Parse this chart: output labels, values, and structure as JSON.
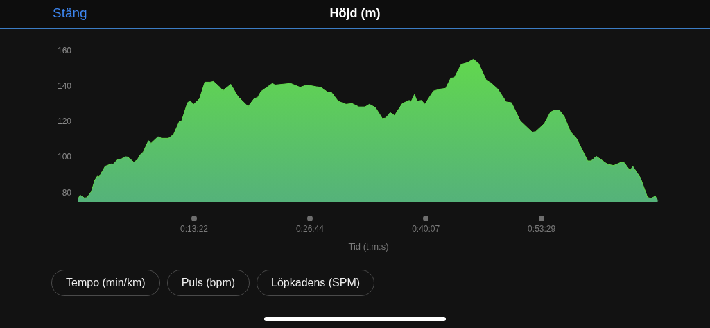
{
  "chart_data": {
    "type": "area",
    "title": "Höjd (m)",
    "xlabel": "Tid (t:m:s)",
    "annotations": [
      "Stäng",
      "Tempo (min/km)",
      "Puls (bpm)",
      "Löpkadens (SPM)"
    ],
    "color": "#62d94c",
    "grid": false,
    "legend": false,
    "marker": "none",
    "xlim": [
      0,
      67
    ],
    "xticks": [
      {
        "value": 13.367,
        "label": "0:13:22"
      },
      {
        "value": 26.733,
        "label": "0:26:44"
      },
      {
        "value": 40.117,
        "label": "0:40:07"
      },
      {
        "value": 53.483,
        "label": "0:53:29"
      }
    ],
    "ylim": [
      75,
      160
    ],
    "yticks": [
      80,
      100,
      120,
      140,
      160
    ],
    "x": [
      0,
      0.2,
      0.7,
      1.0,
      1.5,
      1.9,
      2.2,
      2.4,
      3.1,
      3.8,
      4.0,
      4.5,
      5.0,
      5.4,
      5.7,
      6.4,
      6.8,
      7.2,
      7.5,
      8.1,
      8.4,
      9.2,
      9.6,
      10.4,
      11.0,
      11.7,
      11.9,
      12.6,
      12.9,
      13.3,
      14.0,
      14.6,
      15.2,
      15.6,
      16.2,
      16.7,
      17.6,
      18.4,
      19.6,
      20.3,
      20.7,
      21.1,
      22.4,
      22.7,
      24.5,
      25.6,
      26.4,
      27.5,
      28.0,
      28.8,
      29.2,
      30.0,
      30.9,
      31.6,
      32.4,
      33.1,
      33.6,
      34.3,
      35.1,
      35.5,
      36.0,
      36.5,
      37.4,
      38.2,
      38.4,
      38.8,
      39.1,
      39.6,
      40.0,
      41.0,
      41.8,
      42.4,
      43.0,
      43.4,
      44.2,
      44.9,
      45.6,
      46.2,
      47.1,
      47.6,
      48.4,
      49.4,
      50.0,
      51.0,
      52.4,
      52.8,
      53.8,
      54.5,
      55.0,
      55.5,
      56.1,
      56.8,
      57.5,
      58.8,
      59.2,
      59.8,
      61.1,
      61.8,
      62.6,
      63.0,
      63.7,
      64.0,
      64.9,
      65.7,
      66.1,
      66.6,
      66.9
    ],
    "values": [
      76.9,
      78.8,
      77.2,
      77.4,
      80.8,
      87.2,
      89.5,
      89.1,
      95.1,
      96.4,
      96.2,
      98.7,
      99.3,
      100.5,
      100.3,
      97.4,
      98.7,
      101.9,
      103.2,
      109.6,
      108.1,
      111.8,
      110.9,
      110.9,
      113.1,
      120.8,
      120.3,
      131.0,
      132.0,
      130.0,
      133.3,
      142.6,
      142.6,
      143.0,
      140.4,
      137.8,
      141.4,
      134.6,
      128.8,
      133.3,
      134.0,
      137.4,
      141.9,
      141.0,
      141.9,
      139.7,
      141.0,
      140.0,
      139.7,
      136.9,
      136.9,
      131.8,
      130.1,
      130.5,
      128.6,
      128.6,
      130.1,
      128.2,
      122.0,
      122.4,
      125.4,
      123.7,
      130.5,
      132.3,
      131.4,
      135.6,
      131.8,
      132.3,
      130.1,
      137.6,
      138.7,
      139.1,
      144.9,
      145.1,
      152.6,
      153.6,
      155.5,
      153.2,
      143.6,
      142.3,
      138.8,
      131.4,
      131.0,
      120.8,
      114.3,
      114.7,
      119.2,
      125.6,
      126.9,
      126.9,
      123.1,
      114.7,
      110.9,
      98.1,
      98.1,
      100.7,
      96.2,
      95.5,
      97.2,
      97.2,
      92.6,
      95.1,
      88.5,
      77.6,
      76.9,
      78.2,
      75.7
    ]
  }
}
